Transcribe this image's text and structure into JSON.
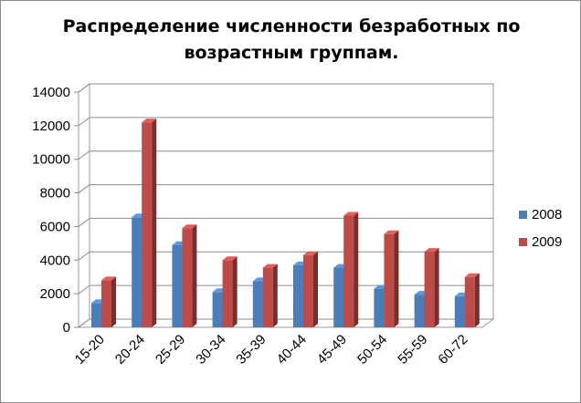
{
  "chart_data": {
    "type": "bar",
    "title_lines": [
      "Распределение численности безработных по",
      "возрастным группам."
    ],
    "xlabel": "",
    "ylabel": "",
    "categories": [
      "15-20",
      "20-24",
      "25-29",
      "30-34",
      "35-39",
      "40-44",
      "45-49",
      "50-54",
      "55-59",
      "60-72"
    ],
    "series": [
      {
        "name": "2008",
        "values": [
          1450,
          6550,
          4900,
          2100,
          2750,
          3700,
          3550,
          2300,
          1950,
          1850
        ],
        "color": "#4a7ebb"
      },
      {
        "name": "2009",
        "values": [
          2800,
          12200,
          5900,
          4000,
          3550,
          4300,
          6650,
          5550,
          4500,
          3000
        ],
        "color": "#be4b48"
      }
    ],
    "ylim": [
      0,
      14000
    ],
    "yticks": [
      "0",
      "2000",
      "4000",
      "6000",
      "8000",
      "10000",
      "12000",
      "14000"
    ],
    "grid": true,
    "legend_position": "right",
    "style": "3d-clustered-column"
  }
}
